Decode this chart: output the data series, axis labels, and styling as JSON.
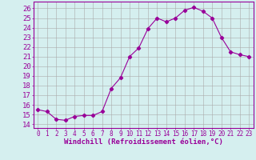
{
  "x": [
    0,
    1,
    2,
    3,
    4,
    5,
    6,
    7,
    8,
    9,
    10,
    11,
    12,
    13,
    14,
    15,
    16,
    17,
    18,
    19,
    20,
    21,
    22,
    23
  ],
  "y": [
    15.5,
    15.3,
    14.5,
    14.4,
    14.8,
    14.9,
    14.9,
    15.3,
    17.7,
    18.8,
    21.0,
    21.9,
    23.9,
    25.0,
    24.6,
    25.0,
    25.8,
    26.1,
    25.7,
    25.0,
    23.0,
    21.5,
    21.2,
    21.0
  ],
  "line_color": "#990099",
  "marker": "D",
  "markersize": 2.2,
  "bg_color": "#d5efef",
  "grid_color": "#aaaaaa",
  "xlabel": "Windchill (Refroidissement éolien,°C)",
  "ylabel_ticks": [
    14,
    15,
    16,
    17,
    18,
    19,
    20,
    21,
    22,
    23,
    24,
    25,
    26
  ],
  "xlim": [
    -0.5,
    23.5
  ],
  "ylim": [
    13.6,
    26.7
  ],
  "tick_color": "#990099",
  "label_color": "#990099",
  "xlabel_fontsize": 6.5,
  "ytick_fontsize": 6.5,
  "xtick_fontsize": 5.5
}
